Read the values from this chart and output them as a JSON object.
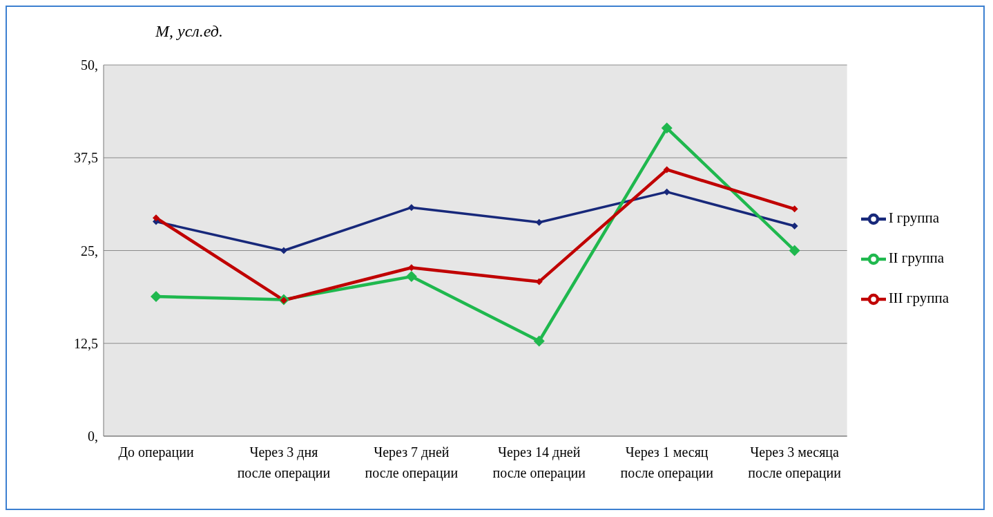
{
  "chart_data": {
    "type": "line",
    "ylabel": "M, усл.ед.",
    "categories": [
      "До операции",
      "Через 3 дня после операции",
      "Через 7 дней после операции",
      "Через 14 дней после операции",
      "Через 1 месяц после операции",
      "Через 3 месяца после операции"
    ],
    "series": [
      {
        "name": "I группа",
        "color": "#17287a",
        "values": [
          28.9,
          25.0,
          30.8,
          28.8,
          32.9,
          28.3
        ]
      },
      {
        "name": "II группа",
        "color": "#1fb84e",
        "values": [
          18.8,
          18.4,
          21.5,
          12.8,
          41.5,
          25.0
        ]
      },
      {
        "name": "III группа",
        "color": "#c00000",
        "values": [
          29.4,
          18.3,
          22.7,
          20.8,
          35.9,
          30.6
        ]
      }
    ],
    "ylim": [
      0,
      50
    ],
    "yticks": [
      {
        "value": 0,
        "label": "0,"
      },
      {
        "value": 12.5,
        "label": "12,5"
      },
      {
        "value": 25,
        "label": "25,"
      },
      {
        "value": 37.5,
        "label": "37,5"
      },
      {
        "value": 50,
        "label": "50,"
      }
    ],
    "grid": "y",
    "legend": "right",
    "marker": "diamond",
    "line_style": "solid"
  }
}
